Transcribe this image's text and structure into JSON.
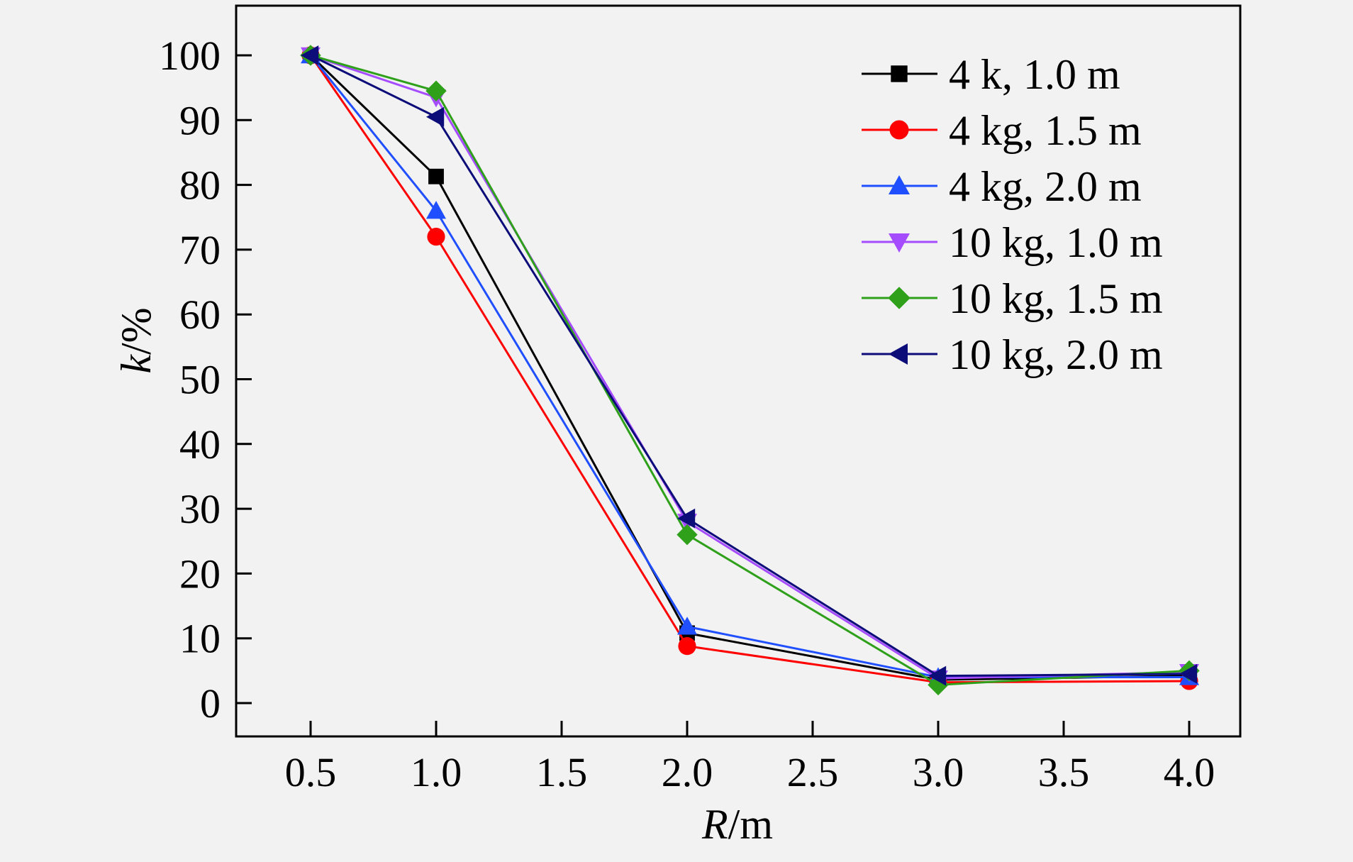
{
  "chart_data": {
    "type": "line",
    "xlabel": {
      "italic": "R",
      "rest": "/m"
    },
    "ylabel": {
      "italic": "k",
      "rest": "/%"
    },
    "x": [
      0.5,
      1.0,
      2.0,
      3.0,
      4.0
    ],
    "x_ticks": [
      "0.5",
      "1.0",
      "1.5",
      "2.0",
      "2.5",
      "3.0",
      "3.5",
      "4.0"
    ],
    "y_ticks": [
      "0",
      "10",
      "20",
      "30",
      "40",
      "50",
      "60",
      "70",
      "80",
      "90",
      "100"
    ],
    "ylim": [
      -5,
      105
    ],
    "grid": false,
    "legend_position": "top-right",
    "series": [
      {
        "name": "4 k, 1.0 m",
        "color": "#000000",
        "marker": "square",
        "values": [
          100,
          81.3,
          10.8,
          3.6,
          4.2
        ]
      },
      {
        "name": "4 kg, 1.5 m",
        "color": "#ff0000",
        "marker": "circle",
        "values": [
          100,
          72.0,
          8.8,
          3.2,
          3.4
        ]
      },
      {
        "name": "4 kg, 2.0 m",
        "color": "#1f4fff",
        "marker": "triangle-up",
        "values": [
          100,
          76.0,
          11.8,
          4.0,
          4.0
        ]
      },
      {
        "name": "10 kg, 1.0 m",
        "color": "#a64cff",
        "marker": "triangle-down",
        "values": [
          100,
          93.5,
          28.0,
          3.8,
          4.8
        ]
      },
      {
        "name": "10 kg, 1.5 m",
        "color": "#2ea01a",
        "marker": "diamond",
        "values": [
          100,
          94.5,
          26.0,
          2.8,
          5.0
        ]
      },
      {
        "name": "10 kg, 2.0 m",
        "color": "#0d0d7a",
        "marker": "triangle-left",
        "values": [
          100,
          90.5,
          28.5,
          4.2,
          4.5
        ]
      }
    ]
  }
}
